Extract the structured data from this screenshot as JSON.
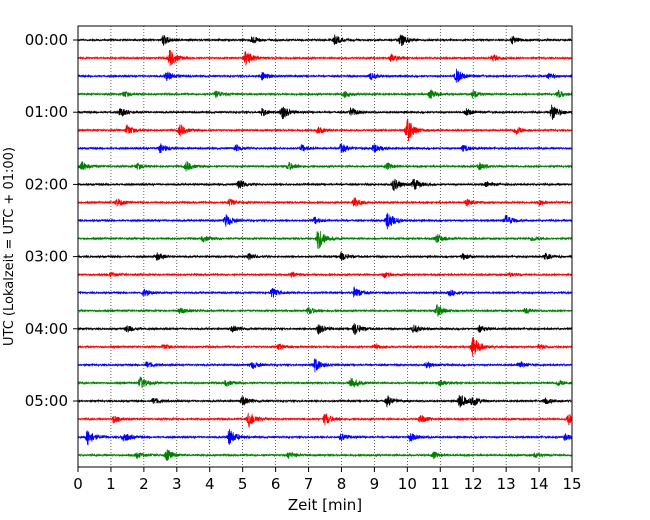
{
  "chart_data": {
    "type": "line",
    "title": "",
    "xlabel": "Zeit  [min]",
    "ylabel": "UTC (Lokalzeit = UTC + 01:00)",
    "xlim": [
      0,
      15
    ],
    "x_ticks": [
      "0",
      "1",
      "2",
      "3",
      "4",
      "5",
      "6",
      "7",
      "8",
      "9",
      "10",
      "11",
      "12",
      "13",
      "14",
      "15"
    ],
    "y_ticks": [
      {
        "label": "00:00",
        "row": 0
      },
      {
        "label": "01:00",
        "row": 4
      },
      {
        "label": "02:00",
        "row": 8
      },
      {
        "label": "03:00",
        "row": 12
      },
      {
        "label": "04:00",
        "row": 16
      },
      {
        "label": "05:00",
        "row": 20
      }
    ],
    "grid": {
      "vertical": true,
      "horizontal": false,
      "style": "dotted"
    },
    "trace_colors": [
      "#000000",
      "#ff0000",
      "#0000ff",
      "#008000"
    ],
    "traces": [
      {
        "start": "00:00",
        "events": [
          [
            2.6,
            1.0
          ],
          [
            5.3,
            0.8
          ],
          [
            7.8,
            0.9
          ],
          [
            9.8,
            1.2
          ],
          [
            13.2,
            0.7
          ]
        ]
      },
      {
        "start": "00:15",
        "events": [
          [
            2.8,
            1.6
          ],
          [
            5.1,
            1.5
          ],
          [
            9.5,
            0.8
          ],
          [
            12.6,
            0.7
          ]
        ]
      },
      {
        "start": "00:30",
        "events": [
          [
            2.7,
            0.9
          ],
          [
            5.6,
            0.8
          ],
          [
            8.9,
            0.7
          ],
          [
            11.5,
            1.4
          ],
          [
            14.3,
            0.6
          ]
        ]
      },
      {
        "start": "00:45",
        "events": [
          [
            1.4,
            0.6
          ],
          [
            4.2,
            0.7
          ],
          [
            8.1,
            0.6
          ],
          [
            10.7,
            0.9
          ],
          [
            12.0,
            0.8
          ],
          [
            14.6,
            0.7
          ]
        ]
      },
      {
        "start": "01:00",
        "events": [
          [
            1.3,
            0.8
          ],
          [
            5.6,
            0.7
          ],
          [
            6.2,
            1.4
          ],
          [
            8.3,
            0.9
          ],
          [
            11.8,
            0.7
          ],
          [
            14.4,
            1.6
          ]
        ]
      },
      {
        "start": "01:15",
        "events": [
          [
            1.5,
            1.0
          ],
          [
            3.1,
            1.1
          ],
          [
            7.3,
            0.7
          ],
          [
            10.0,
            2.4
          ],
          [
            13.3,
            0.9
          ]
        ]
      },
      {
        "start": "01:30",
        "events": [
          [
            2.5,
            1.0
          ],
          [
            4.8,
            0.7
          ],
          [
            6.8,
            0.6
          ],
          [
            8.0,
            0.9
          ],
          [
            9.0,
            0.9
          ],
          [
            11.7,
            0.6
          ]
        ]
      },
      {
        "start": "01:45",
        "events": [
          [
            0.1,
            1.0
          ],
          [
            1.8,
            0.6
          ],
          [
            3.3,
            0.9
          ],
          [
            6.4,
            0.8
          ],
          [
            9.4,
            0.6
          ],
          [
            12.2,
            0.7
          ]
        ]
      },
      {
        "start": "02:00",
        "events": [
          [
            4.9,
            1.0
          ],
          [
            9.6,
            1.3
          ],
          [
            10.2,
            1.1
          ],
          [
            12.4,
            0.6
          ]
        ]
      },
      {
        "start": "02:15",
        "events": [
          [
            1.2,
            0.8
          ],
          [
            4.6,
            0.7
          ],
          [
            8.4,
            0.9
          ],
          [
            11.8,
            0.7
          ],
          [
            14.0,
            0.6
          ]
        ]
      },
      {
        "start": "02:30",
        "events": [
          [
            4.5,
            1.2
          ],
          [
            7.2,
            0.6
          ],
          [
            9.4,
            1.8
          ],
          [
            13.0,
            1.1
          ]
        ]
      },
      {
        "start": "02:45",
        "events": [
          [
            3.8,
            0.6
          ],
          [
            7.3,
            2.2
          ],
          [
            10.9,
            0.9
          ],
          [
            13.8,
            0.5
          ]
        ]
      },
      {
        "start": "03:00",
        "events": [
          [
            2.4,
            0.7
          ],
          [
            5.2,
            0.6
          ],
          [
            8.0,
            0.8
          ],
          [
            11.7,
            0.6
          ],
          [
            14.2,
            0.6
          ]
        ]
      },
      {
        "start": "03:15",
        "events": [
          [
            1.0,
            0.4
          ],
          [
            6.5,
            0.5
          ],
          [
            9.3,
            0.5
          ],
          [
            13.1,
            0.4
          ]
        ]
      },
      {
        "start": "03:30",
        "events": [
          [
            2.0,
            0.7
          ],
          [
            5.9,
            0.9
          ],
          [
            8.4,
            1.0
          ],
          [
            11.3,
            0.6
          ]
        ]
      },
      {
        "start": "03:45",
        "events": [
          [
            3.1,
            0.6
          ],
          [
            7.0,
            0.7
          ],
          [
            10.9,
            1.2
          ],
          [
            13.6,
            0.6
          ]
        ]
      },
      {
        "start": "04:00",
        "events": [
          [
            1.5,
            0.7
          ],
          [
            4.7,
            0.6
          ],
          [
            7.3,
            1.0
          ],
          [
            8.4,
            1.2
          ],
          [
            10.2,
            0.8
          ],
          [
            12.2,
            0.7
          ]
        ]
      },
      {
        "start": "04:15",
        "events": [
          [
            2.6,
            0.5
          ],
          [
            6.1,
            0.6
          ],
          [
            9.0,
            0.5
          ],
          [
            12.0,
            2.0
          ],
          [
            14.0,
            0.5
          ]
        ]
      },
      {
        "start": "04:30",
        "events": [
          [
            2.1,
            0.6
          ],
          [
            5.3,
            0.7
          ],
          [
            7.2,
            1.3
          ],
          [
            10.6,
            0.6
          ],
          [
            13.4,
            0.7
          ]
        ]
      },
      {
        "start": "04:45",
        "events": [
          [
            1.9,
            1.2
          ],
          [
            4.5,
            0.6
          ],
          [
            8.3,
            1.2
          ],
          [
            11.0,
            0.6
          ],
          [
            14.6,
            0.6
          ]
        ]
      },
      {
        "start": "05:00",
        "events": [
          [
            2.3,
            0.6
          ],
          [
            5.0,
            0.9
          ],
          [
            9.4,
            1.0
          ],
          [
            11.6,
            1.3
          ],
          [
            12.0,
            1.0
          ],
          [
            14.2,
            0.6
          ]
        ]
      },
      {
        "start": "05:15",
        "events": [
          [
            1.1,
            0.8
          ],
          [
            5.2,
            1.6
          ],
          [
            7.5,
            1.2
          ],
          [
            10.4,
            0.8
          ],
          [
            14.9,
            1.1
          ]
        ]
      },
      {
        "start": "05:30",
        "events": [
          [
            0.3,
            1.6
          ],
          [
            1.4,
            1.0
          ],
          [
            4.6,
            1.6
          ],
          [
            8.0,
            0.7
          ],
          [
            10.1,
            0.8
          ],
          [
            14.8,
            0.7
          ]
        ]
      },
      {
        "start": "05:45",
        "events": [
          [
            1.8,
            0.6
          ],
          [
            2.7,
            1.1
          ],
          [
            6.4,
            0.6
          ],
          [
            10.8,
            0.6
          ],
          [
            13.9,
            0.5
          ]
        ]
      }
    ]
  }
}
